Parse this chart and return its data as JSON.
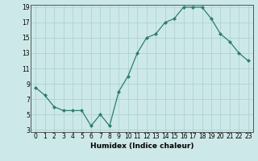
{
  "x": [
    0,
    1,
    2,
    3,
    4,
    5,
    6,
    7,
    8,
    9,
    10,
    11,
    12,
    13,
    14,
    15,
    16,
    17,
    18,
    19,
    20,
    21,
    22,
    23
  ],
  "y": [
    8.5,
    7.5,
    6.0,
    5.5,
    5.5,
    5.5,
    3.5,
    5.0,
    3.5,
    8.0,
    10.0,
    13.0,
    15.0,
    15.5,
    17.0,
    17.5,
    19.0,
    19.0,
    19.0,
    17.5,
    15.5,
    14.5,
    13.0,
    12.0
  ],
  "xlabel": "Humidex (Indice chaleur)",
  "ylim_min": 3,
  "ylim_max": 19,
  "xlim_min": 0,
  "xlim_max": 23,
  "yticks": [
    3,
    5,
    7,
    9,
    11,
    13,
    15,
    17,
    19
  ],
  "xticks": [
    0,
    1,
    2,
    3,
    4,
    5,
    6,
    7,
    8,
    9,
    10,
    11,
    12,
    13,
    14,
    15,
    16,
    17,
    18,
    19,
    20,
    21,
    22,
    23
  ],
  "line_color": "#2e7d6e",
  "marker_color": "#2e7d6e",
  "bg_color": "#cce8e8",
  "grid_color": "#aacfcf",
  "tick_fontsize": 5.5,
  "xlabel_fontsize": 6.5
}
